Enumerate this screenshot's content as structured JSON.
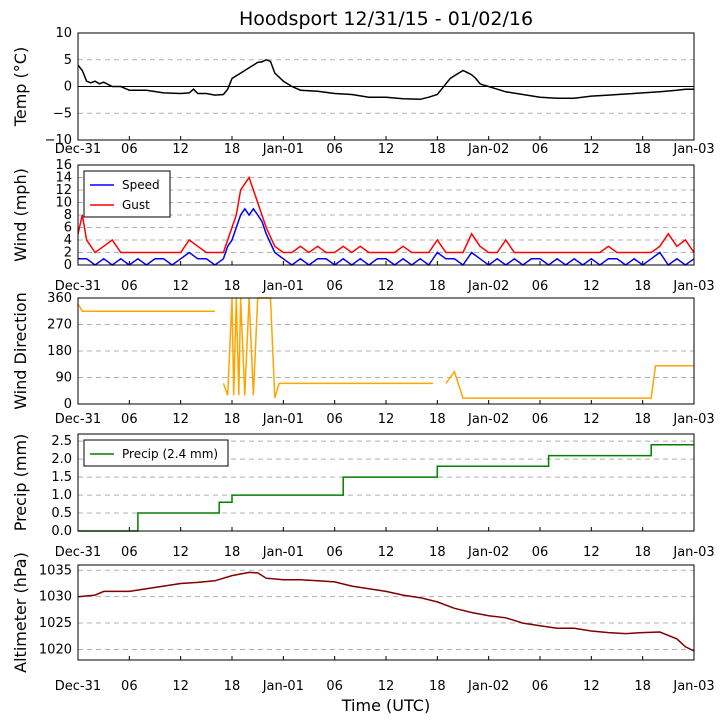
{
  "title": "Hoodsport 12/31/15 - 01/02/16",
  "xlabel": "Time (UTC)",
  "x_ticks": [
    "Dec-31",
    "06",
    "12",
    "18",
    "Jan-01",
    "06",
    "12",
    "18",
    "Jan-02",
    "06",
    "12",
    "18",
    "Jan-03"
  ],
  "x_range_hours": [
    0,
    72
  ],
  "colors": {
    "temp": "#000000",
    "speed": "#0000ff",
    "gust": "#ff0000",
    "direction": "#ffa500",
    "precip": "#008000",
    "altimeter": "#800000"
  },
  "chart_data": [
    {
      "id": "temp",
      "type": "line",
      "ylabel": "Temp (°C)",
      "ylim": [
        -10,
        10
      ],
      "y_ticks": [
        "10",
        "5",
        "0",
        "−5",
        "−10"
      ],
      "y_tick_values": [
        10,
        5,
        0,
        -5,
        -10
      ],
      "zero_line": true,
      "series": [
        {
          "name": "Temp",
          "x": [
            0,
            0.5,
            1,
            1.5,
            2,
            2.5,
            3,
            4,
            5,
            6,
            8,
            10,
            12,
            13,
            13.5,
            14,
            15,
            16,
            17,
            17.5,
            18,
            18.5,
            19,
            19.5,
            20,
            20.5,
            21,
            21.5,
            22,
            22.5,
            23,
            24,
            25,
            26,
            28,
            30,
            32,
            34,
            36,
            38,
            40,
            41,
            42,
            42.5,
            43,
            43.5,
            44,
            44.5,
            45,
            45.5,
            46,
            46.5,
            47,
            47.5,
            48,
            49,
            50,
            52,
            54,
            56,
            58,
            60,
            62,
            64,
            66,
            68,
            70,
            71,
            72
          ],
          "values": [
            4,
            3,
            1,
            0.7,
            1,
            0.5,
            0.8,
            0,
            0,
            -0.7,
            -0.7,
            -1.2,
            -1.3,
            -1.2,
            -0.5,
            -1.3,
            -1.3,
            -1.6,
            -1.5,
            -0.5,
            1.5,
            2,
            2.5,
            3,
            3.5,
            4,
            4.5,
            4.6,
            5,
            4.7,
            2.5,
            1,
            0,
            -0.7,
            -0.9,
            -1.3,
            -1.5,
            -2,
            -2,
            -2.3,
            -2.4,
            -2,
            -1.5,
            -0.5,
            0.5,
            1.5,
            2,
            2.5,
            3,
            2.6,
            2.2,
            1.5,
            0.5,
            0.2,
            0,
            -0.5,
            -1,
            -1.5,
            -2,
            -2.2,
            -2.2,
            -1.8,
            -1.6,
            -1.4,
            -1.2,
            -1,
            -0.7,
            -0.5,
            -0.5
          ]
        }
      ]
    },
    {
      "id": "wind",
      "type": "line",
      "ylabel": "Wind (mph)",
      "ylim": [
        0,
        16
      ],
      "y_ticks": [
        "16",
        "14",
        "12",
        "10",
        "8",
        "6",
        "4",
        "2",
        "0"
      ],
      "y_tick_values": [
        16,
        14,
        12,
        10,
        8,
        6,
        4,
        2,
        0
      ],
      "legend": [
        "Speed",
        "Gust"
      ],
      "series": [
        {
          "name": "Speed",
          "x": [
            0,
            1,
            2,
            3,
            4,
            5,
            6,
            7,
            8,
            9,
            10,
            11,
            12,
            13,
            14,
            15,
            16,
            17,
            17.5,
            18,
            18.5,
            19,
            19.5,
            20,
            20.5,
            21,
            21.5,
            22,
            23,
            24,
            25,
            26,
            27,
            28,
            29,
            30,
            31,
            32,
            33,
            34,
            35,
            36,
            37,
            38,
            39,
            40,
            41,
            42,
            43,
            44,
            45,
            46,
            47,
            48,
            49,
            50,
            51,
            52,
            53,
            54,
            55,
            56,
            57,
            58,
            59,
            60,
            61,
            62,
            63,
            64,
            65,
            66,
            67,
            68,
            69,
            70,
            71,
            72
          ],
          "values": [
            1,
            1,
            0,
            1,
            0,
            1,
            0,
            1,
            0,
            1,
            1,
            0,
            1,
            2,
            1,
            1,
            0,
            1,
            3,
            4,
            6,
            8,
            9,
            8,
            9,
            8,
            7,
            5,
            2,
            1,
            0,
            1,
            0,
            1,
            1,
            0,
            1,
            0,
            1,
            0,
            1,
            1,
            0,
            1,
            0,
            1,
            0,
            2,
            1,
            1,
            0,
            2,
            1,
            0,
            1,
            0,
            1,
            0,
            1,
            1,
            0,
            1,
            0,
            1,
            0,
            1,
            0,
            1,
            1,
            0,
            1,
            0,
            1,
            2,
            0,
            1,
            0,
            1
          ]
        },
        {
          "name": "Gust",
          "x": [
            0,
            0.5,
            1,
            2,
            3,
            4,
            5,
            6,
            7,
            8,
            9,
            10,
            11,
            12,
            13,
            14,
            15,
            16,
            17,
            17.5,
            18,
            18.5,
            19,
            19.5,
            20,
            20.5,
            21,
            21.5,
            22,
            23,
            24,
            25,
            26,
            27,
            28,
            29,
            30,
            31,
            32,
            33,
            34,
            35,
            36,
            37,
            38,
            39,
            40,
            41,
            42,
            43,
            44,
            45,
            46,
            47,
            48,
            49,
            50,
            51,
            52,
            53,
            54,
            55,
            56,
            57,
            58,
            59,
            60,
            61,
            62,
            63,
            64,
            65,
            66,
            67,
            68,
            69,
            70,
            71,
            72
          ],
          "values": [
            5,
            8,
            4,
            2,
            3,
            4,
            2,
            2,
            2,
            2,
            2,
            2,
            2,
            2,
            4,
            3,
            2,
            2,
            2,
            4,
            6,
            8,
            12,
            13,
            14,
            12,
            10,
            8,
            6,
            3,
            2,
            2,
            3,
            2,
            3,
            2,
            2,
            3,
            2,
            3,
            2,
            2,
            2,
            2,
            3,
            2,
            2,
            2,
            4,
            2,
            2,
            2,
            5,
            3,
            2,
            2,
            4,
            2,
            2,
            2,
            2,
            2,
            2,
            2,
            2,
            2,
            2,
            2,
            3,
            2,
            2,
            2,
            2,
            2,
            3,
            5,
            3,
            4,
            2
          ]
        }
      ]
    },
    {
      "id": "direction",
      "type": "line",
      "ylabel": "Wind Direction",
      "ylim": [
        0,
        360
      ],
      "y_ticks": [
        "360",
        "270",
        "180",
        "90",
        "0"
      ],
      "y_tick_values": [
        360,
        270,
        180,
        90,
        0
      ],
      "series": [
        {
          "name": "Direction",
          "x": [
            0,
            0.5,
            1,
            4,
            8,
            12,
            16,
            16.5,
            17,
            17.5,
            18,
            18.2,
            18.5,
            18.8,
            19,
            19.5,
            20,
            20.5,
            21,
            21.5,
            22,
            22.5,
            23,
            23.5,
            24,
            26,
            28,
            30,
            32,
            34,
            36,
            38,
            40,
            41,
            41.5,
            42,
            43,
            44,
            45,
            46,
            47,
            48,
            50,
            52,
            54,
            56,
            58,
            60,
            62,
            64,
            66,
            67,
            67.5,
            68,
            69,
            70,
            71,
            72
          ],
          "values": [
            340,
            315,
            315,
            315,
            315,
            315,
            315,
            null,
            70,
            30,
            360,
            30,
            360,
            30,
            360,
            30,
            360,
            30,
            360,
            360,
            360,
            360,
            20,
            70,
            70,
            70,
            70,
            70,
            70,
            70,
            70,
            70,
            70,
            70,
            70,
            null,
            70,
            110,
            20,
            20,
            20,
            20,
            20,
            20,
            20,
            20,
            20,
            20,
            20,
            20,
            20,
            20,
            130,
            130,
            130,
            130,
            130,
            130
          ]
        }
      ]
    },
    {
      "id": "precip",
      "type": "line",
      "ylabel": "Precip (mm)",
      "ylim": [
        0,
        2.7
      ],
      "y_ticks": [
        "2.5",
        "2.0",
        "1.5",
        "1.0",
        "0.5",
        "0.0"
      ],
      "y_tick_values": [
        2.5,
        2.0,
        1.5,
        1.0,
        0.5,
        0.0
      ],
      "legend": [
        "Precip (2.4 mm)"
      ],
      "series": [
        {
          "name": "Precip (2.4 mm)",
          "x": [
            0,
            7,
            7,
            16.5,
            16.5,
            18,
            18,
            31,
            31,
            42,
            42,
            55,
            55,
            67,
            67,
            72
          ],
          "values": [
            0,
            0,
            0.5,
            0.5,
            0.8,
            0.8,
            1.0,
            1.0,
            1.5,
            1.5,
            1.8,
            1.8,
            2.1,
            2.1,
            2.4,
            2.4
          ]
        }
      ]
    },
    {
      "id": "altimeter",
      "type": "line",
      "ylabel": "Altimeter (hPa)",
      "ylim": [
        1018,
        1036
      ],
      "y_ticks": [
        "1035",
        "1030",
        "1025",
        "1020"
      ],
      "y_tick_values": [
        1035,
        1030,
        1025,
        1020
      ],
      "series": [
        {
          "name": "Altimeter",
          "x": [
            0,
            2,
            3,
            6,
            8,
            10,
            12,
            14,
            16,
            18,
            20,
            21,
            22,
            24,
            26,
            28,
            30,
            32,
            34,
            36,
            38,
            40,
            42,
            44,
            46,
            48,
            50,
            52,
            54,
            56,
            58,
            60,
            62,
            64,
            66,
            68,
            70,
            71,
            72
          ],
          "values": [
            1030,
            1030.3,
            1031,
            1031,
            1031.5,
            1032,
            1032.5,
            1032.7,
            1033,
            1034,
            1034.6,
            1034.5,
            1033.5,
            1033.2,
            1033.2,
            1033,
            1032.8,
            1032,
            1031.5,
            1031,
            1030.3,
            1029.8,
            1029,
            1027.8,
            1027,
            1026.4,
            1026,
            1025,
            1024.5,
            1024,
            1024,
            1023.5,
            1023.2,
            1023,
            1023.2,
            1023.3,
            1022,
            1020.5,
            1019.7
          ]
        }
      ]
    }
  ]
}
